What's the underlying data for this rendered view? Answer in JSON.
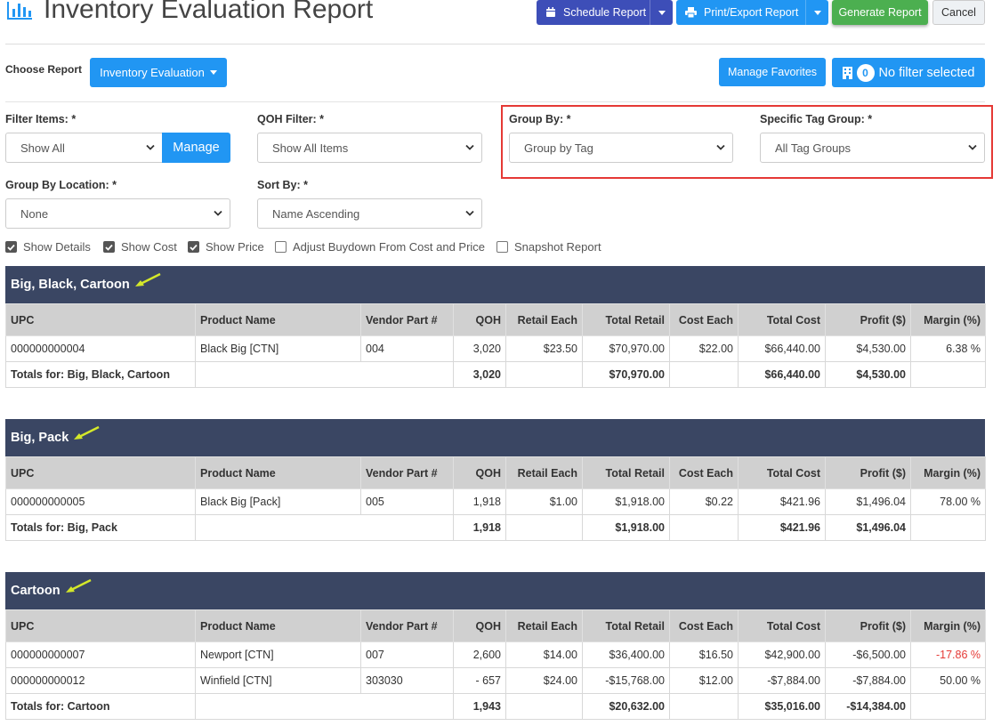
{
  "header": {
    "title": "Inventory Evaluation Report",
    "schedule_label": "Schedule Report",
    "print_label": "Print/Export Report",
    "generate_label": "Generate Report",
    "cancel_label": "Cancel"
  },
  "report_bar": {
    "choose_label": "Choose Report",
    "report_button": "Inventory Evaluation",
    "favorites_button": "Manage Favorites",
    "filter_count": "0",
    "filter_text": "No filter selected"
  },
  "filters": {
    "filter_items_label": "Filter Items: *",
    "filter_items_value": "Show All",
    "manage_label": "Manage",
    "qoh_label": "QOH Filter: *",
    "qoh_value": "Show All Items",
    "group_by_label": "Group By: *",
    "group_by_value": "Group by Tag",
    "tag_group_label": "Specific Tag Group: *",
    "tag_group_value": "All Tag Groups",
    "location_label": "Group By Location: *",
    "location_value": "None",
    "sort_label": "Sort By: *",
    "sort_value": "Name Ascending"
  },
  "options": [
    {
      "label": "Show Details",
      "checked": true
    },
    {
      "label": "Show Cost",
      "checked": true
    },
    {
      "label": "Show Price",
      "checked": true
    },
    {
      "label": "Adjust Buydown From Cost and Price",
      "checked": false
    },
    {
      "label": "Snapshot Report",
      "checked": false
    }
  ],
  "columns": [
    "UPC",
    "Product Name",
    "Vendor Part #",
    "QOH",
    "Retail Each",
    "Total Retail",
    "Cost Each",
    "Total Cost",
    "Profit ($)",
    "Margin (%)"
  ],
  "groups": [
    {
      "name": "Big, Black, Cartoon",
      "rows": [
        [
          "000000000004",
          "Black Big [CTN]",
          "004",
          "3,020",
          "$23.50",
          "$70,970.00",
          "$22.00",
          "$66,440.00",
          "$4,530.00",
          "6.38 %"
        ]
      ],
      "totals": [
        "Totals for: Big, Black, Cartoon",
        "",
        "3,020",
        "",
        "$70,970.00",
        "",
        "$66,440.00",
        "$4,530.00",
        ""
      ]
    },
    {
      "name": "Big, Pack",
      "rows": [
        [
          "000000000005",
          "Black Big [Pack]",
          "005",
          "1,918",
          "$1.00",
          "$1,918.00",
          "$0.22",
          "$421.96",
          "$1,496.04",
          "78.00 %"
        ]
      ],
      "totals": [
        "Totals for: Big, Pack",
        "",
        "1,918",
        "",
        "$1,918.00",
        "",
        "$421.96",
        "$1,496.04",
        ""
      ]
    },
    {
      "name": "Cartoon",
      "rows": [
        [
          "000000000007",
          "Newport [CTN]",
          "007",
          "2,600",
          "$14.00",
          "$36,400.00",
          "$16.50",
          "$42,900.00",
          "-$6,500.00",
          "-17.86 %"
        ],
        [
          "000000000012",
          "Winfield [CTN]",
          "303030",
          "- 657",
          "$24.00",
          "-$15,768.00",
          "$12.00",
          "-$7,884.00",
          "-$7,884.00",
          "50.00 %"
        ]
      ],
      "totals": [
        "Totals for: Cartoon",
        "",
        "1,943",
        "",
        "$20,632.00",
        "",
        "$35,016.00",
        "-$14,384.00",
        ""
      ]
    }
  ],
  "colors": {
    "header_bar": "#3a4663",
    "primary": "#2196f3",
    "schedule": "#3d4eb8",
    "generate": "#4caf50",
    "highlight": "#e53935",
    "arrow": "#d4e82a",
    "negative": "#e53935"
  }
}
